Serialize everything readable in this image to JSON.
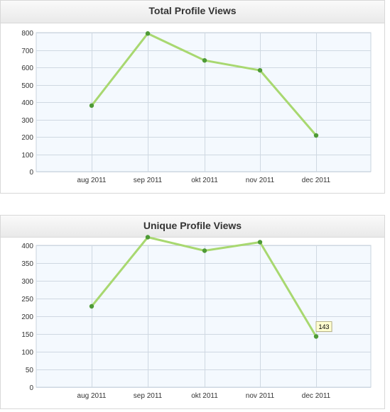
{
  "chart_data": [
    {
      "type": "line",
      "title": "Total Profile Views",
      "categories": [
        "aug 2011",
        "sep 2011",
        "okt 2011",
        "nov 2011",
        "dec 2011"
      ],
      "values": [
        380,
        795,
        640,
        583,
        208
      ],
      "yticks": [
        0,
        100,
        200,
        300,
        400,
        500,
        600,
        700,
        800
      ],
      "ylim": [
        0,
        800
      ],
      "grid": true,
      "colors": {
        "line": "#a8d870",
        "point": "#4e9a36",
        "plot_bg": "#f4f9fe",
        "grid": "#cfd8e2"
      }
    },
    {
      "type": "line",
      "title": "Unique Profile Views",
      "categories": [
        "aug 2011",
        "sep 2011",
        "okt 2011",
        "nov 2011",
        "dec 2011"
      ],
      "values": [
        228,
        423,
        385,
        409,
        143
      ],
      "yticks": [
        0,
        50,
        100,
        150,
        200,
        250,
        300,
        350,
        400
      ],
      "ylim": [
        0,
        400
      ],
      "grid": true,
      "tooltip": {
        "category": "dec 2011",
        "text": "143"
      },
      "colors": {
        "line": "#a8d870",
        "point": "#4e9a36",
        "plot_bg": "#f4f9fe",
        "grid": "#cfd8e2"
      }
    }
  ]
}
